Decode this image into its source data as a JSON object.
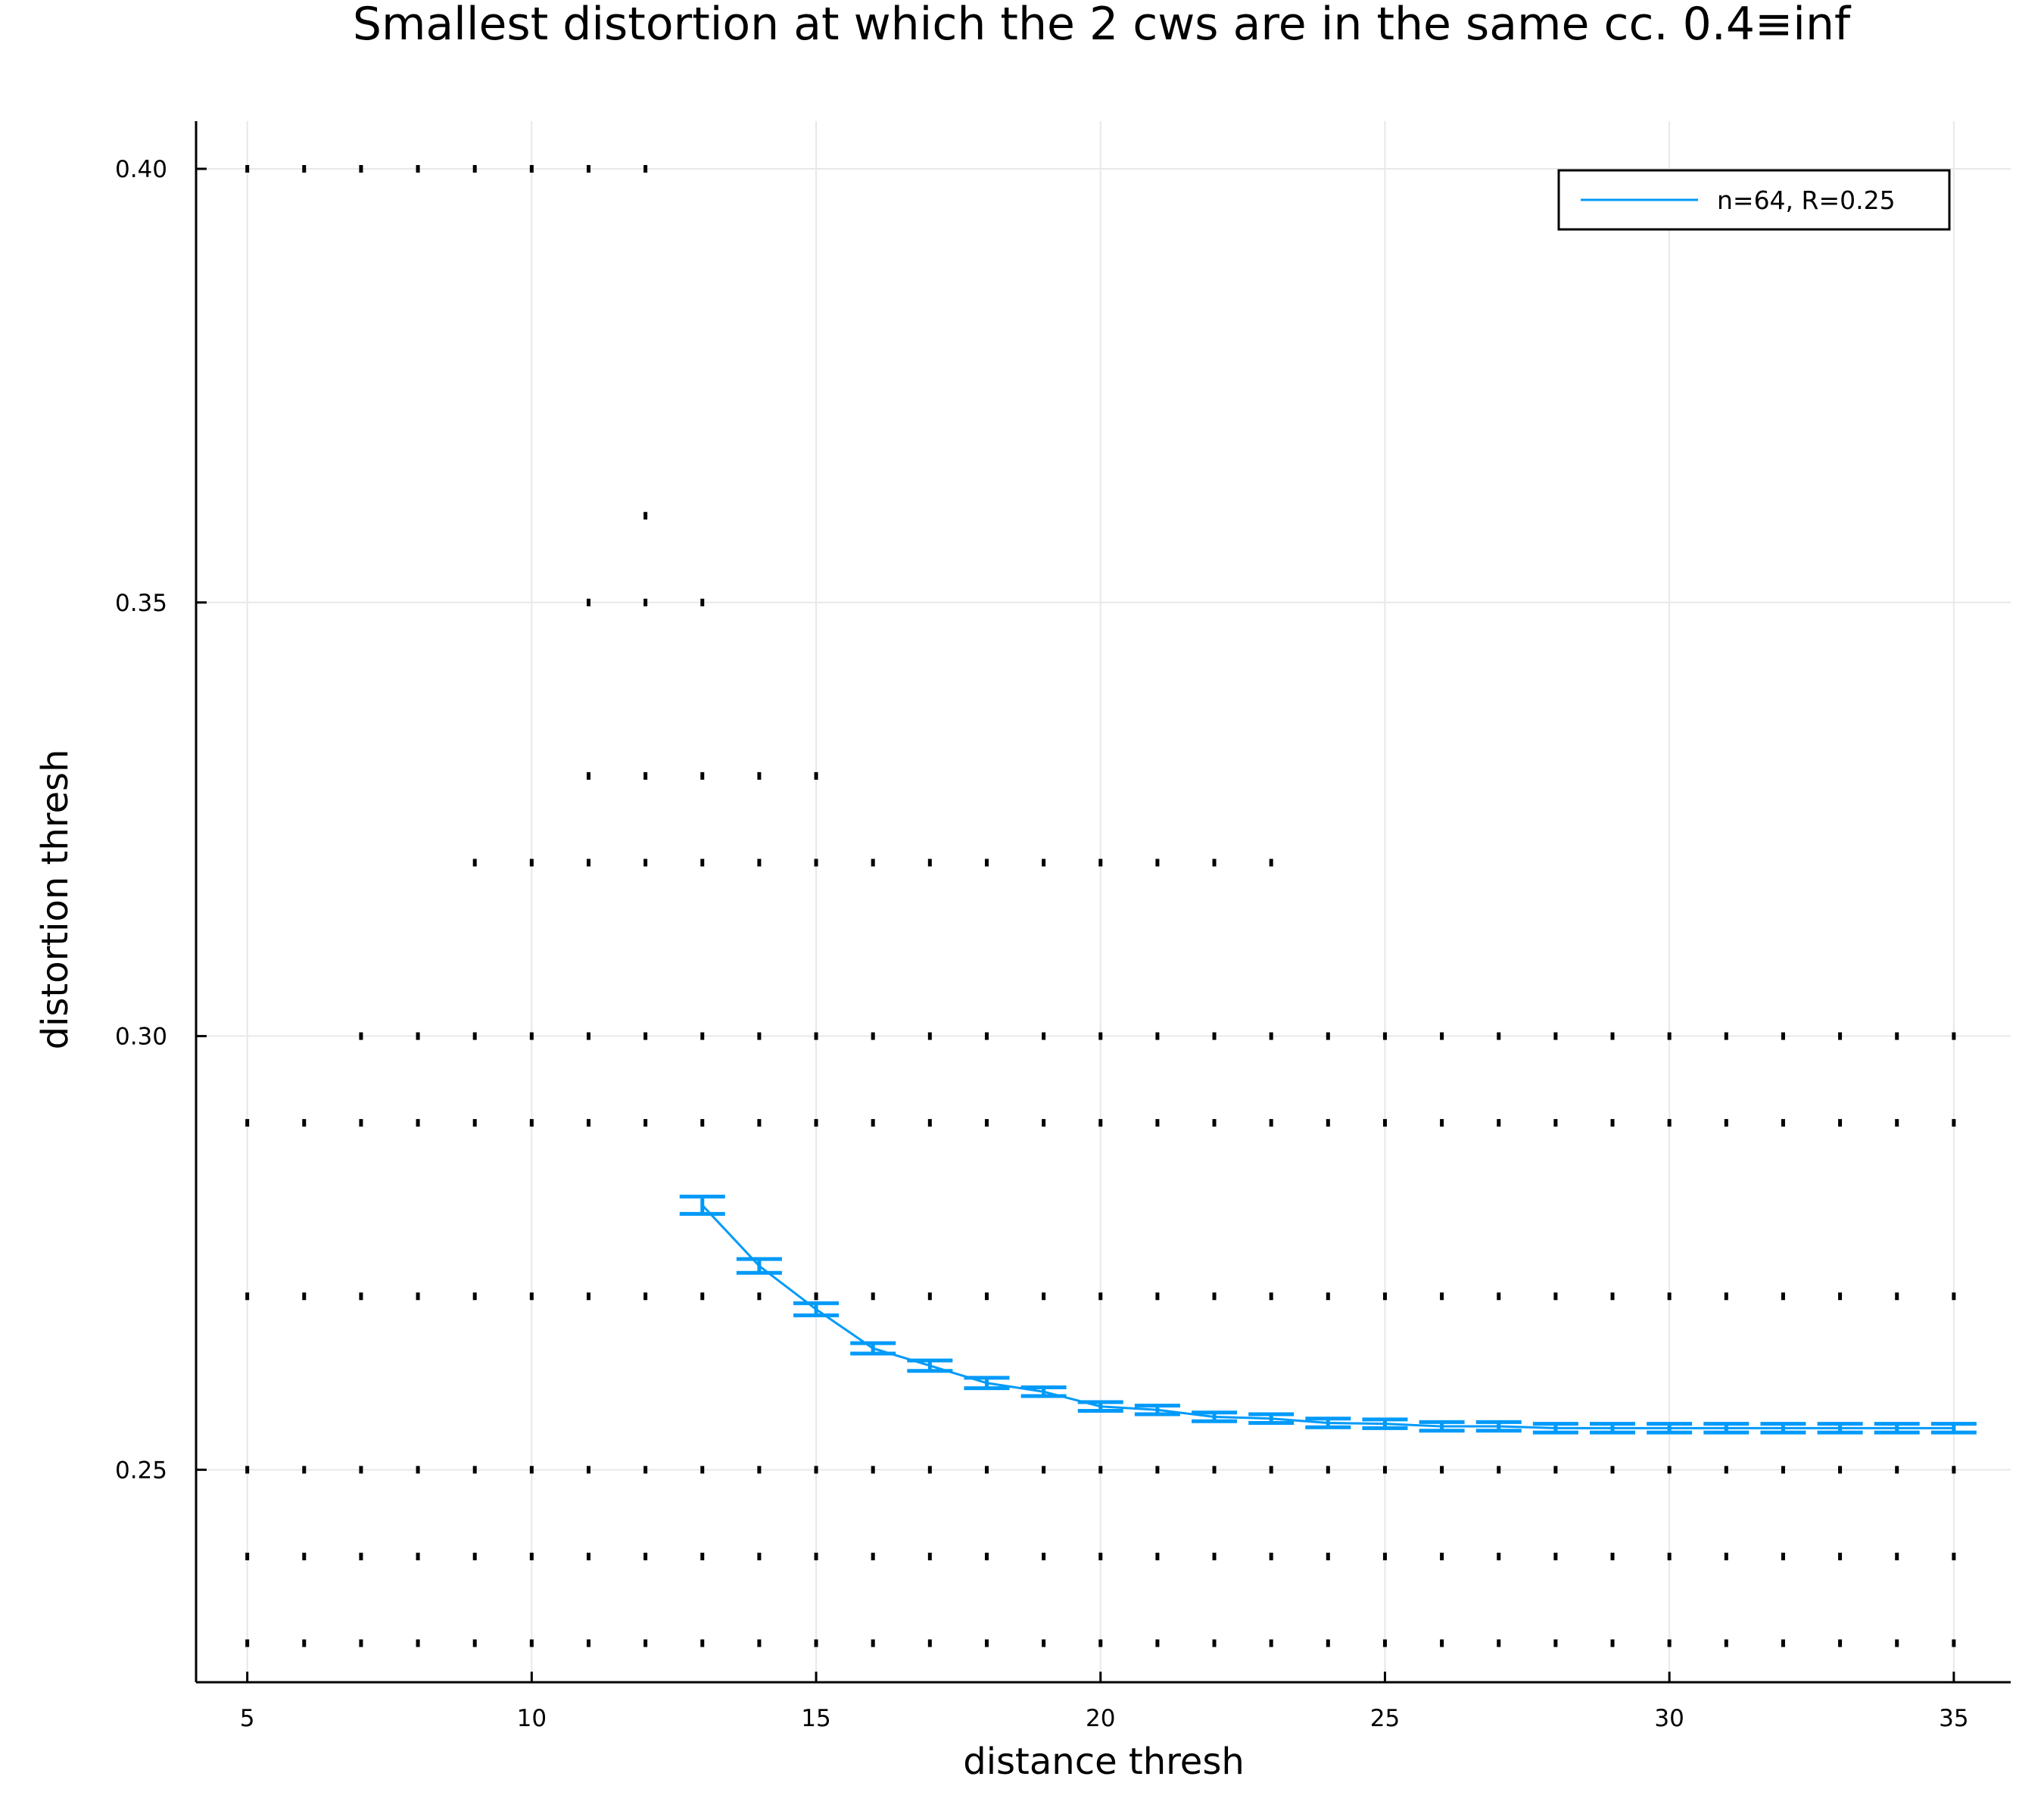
{
  "chart_data": {
    "type": "scatter",
    "title": "Smallest distortion at which the 2 cws are in the same cc. 0.4≡inf",
    "xlabel": "distance thresh",
    "ylabel": "distortion thresh",
    "xlim": [
      4.1,
      36.0
    ],
    "ylim": [
      0.2255,
      0.4055
    ],
    "xticks": [
      5,
      10,
      15,
      20,
      25,
      30,
      35
    ],
    "xtick_labels": [
      "5",
      "10",
      "15",
      "20",
      "25",
      "30",
      "35"
    ],
    "yticks": [
      0.25,
      0.3,
      0.35,
      0.4
    ],
    "ytick_labels": [
      "0.25",
      "0.30",
      "0.35",
      "0.40"
    ],
    "grid": true,
    "legend_position": "top-right",
    "colors": {
      "series": "#009af9",
      "points": "#000000",
      "grid": "#e8e8e8"
    },
    "scatter_points": [
      {
        "y": 0.4,
        "x": [
          5,
          6,
          7,
          8,
          9,
          10,
          11,
          12
        ]
      },
      {
        "y": 0.36,
        "x": [
          12
        ]
      },
      {
        "y": 0.35,
        "x": [
          11,
          12,
          13
        ]
      },
      {
        "y": 0.33,
        "x": [
          11,
          12,
          13,
          14,
          15
        ]
      },
      {
        "y": 0.32,
        "x": [
          9,
          10,
          11,
          12,
          13,
          14,
          15,
          16,
          17,
          18,
          19,
          20,
          21,
          22,
          23
        ]
      },
      {
        "y": 0.3,
        "x": [
          7,
          8,
          9,
          10,
          11,
          12,
          13,
          14,
          15,
          16,
          17,
          18,
          19,
          20,
          21,
          22,
          23,
          24,
          25,
          26,
          27,
          28,
          29,
          30,
          31,
          32,
          33,
          34,
          35
        ]
      },
      {
        "y": 0.29,
        "x": [
          5,
          6,
          7,
          8,
          9,
          10,
          11,
          12,
          13,
          14,
          15,
          16,
          17,
          18,
          19,
          20,
          21,
          22,
          23,
          24,
          25,
          26,
          27,
          28,
          29,
          30,
          31,
          32,
          33,
          34,
          35
        ]
      },
      {
        "y": 0.27,
        "x": [
          5,
          6,
          7,
          8,
          9,
          10,
          11,
          12,
          13,
          14,
          15,
          16,
          17,
          18,
          19,
          20,
          21,
          22,
          23,
          24,
          25,
          26,
          27,
          28,
          29,
          30,
          31,
          32,
          33,
          34,
          35
        ]
      },
      {
        "y": 0.25,
        "x": [
          5,
          6,
          7,
          8,
          9,
          10,
          11,
          12,
          13,
          14,
          15,
          16,
          17,
          18,
          19,
          20,
          21,
          22,
          23,
          24,
          25,
          26,
          27,
          28,
          29,
          30,
          31,
          32,
          33,
          34,
          35
        ]
      },
      {
        "y": 0.24,
        "x": [
          5,
          6,
          7,
          8,
          9,
          10,
          11,
          12,
          13,
          14,
          15,
          16,
          17,
          18,
          19,
          20,
          21,
          22,
          23,
          24,
          25,
          26,
          27,
          28,
          29,
          30,
          31,
          32,
          33,
          34,
          35
        ]
      },
      {
        "y": 0.23,
        "x": [
          5,
          6,
          7,
          8,
          9,
          10,
          11,
          12,
          13,
          14,
          15,
          16,
          17,
          18,
          19,
          20,
          21,
          22,
          23,
          24,
          25,
          26,
          27,
          28,
          29,
          30,
          31,
          32,
          33,
          34,
          35
        ]
      }
    ],
    "series": [
      {
        "name": "n=64, R=0.25",
        "x": [
          13,
          14,
          15,
          16,
          17,
          18,
          19,
          20,
          21,
          22,
          23,
          24,
          25,
          26,
          27,
          28,
          29,
          30,
          31,
          32,
          33,
          34,
          35
        ],
        "y": [
          0.2805,
          0.2735,
          0.2685,
          0.264,
          0.262,
          0.26,
          0.259,
          0.2573,
          0.2569,
          0.2561,
          0.2559,
          0.2554,
          0.2553,
          0.255,
          0.255,
          0.2548,
          0.2548,
          0.2548,
          0.2548,
          0.2548,
          0.2548,
          0.2548,
          0.2548
        ],
        "err": [
          0.001,
          0.0008,
          0.0007,
          0.0006,
          0.0006,
          0.0006,
          0.0005,
          0.0005,
          0.0005,
          0.0005,
          0.0005,
          0.0005,
          0.0005,
          0.0005,
          0.0005,
          0.0005,
          0.0005,
          0.0005,
          0.0005,
          0.0005,
          0.0005,
          0.0005,
          0.0005
        ]
      }
    ]
  }
}
